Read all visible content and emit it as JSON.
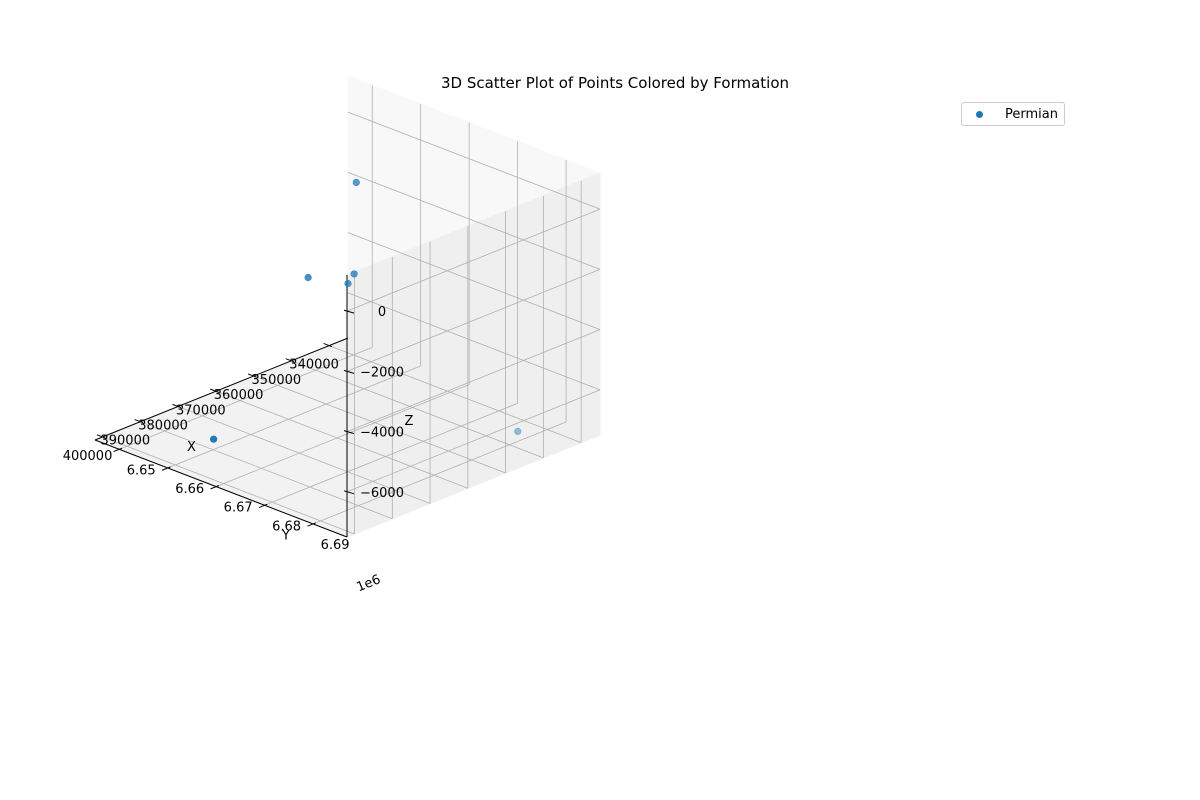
{
  "chart_data": {
    "type": "scatter3d",
    "title": "3D Scatter Plot of Points Colored by Formation",
    "xlabel": "X",
    "ylabel": "Y",
    "zlabel": "Z",
    "y_offset_label": "1e6",
    "xlim": [
      335000,
      402000
    ],
    "ylim": [
      6.645,
      6.697
    ],
    "zlim": [
      -7500,
      1200
    ],
    "x_ticks": [
      340000,
      350000,
      360000,
      370000,
      380000,
      390000,
      400000
    ],
    "x_tick_labels": [
      "340000",
      "350000",
      "360000",
      "370000",
      "380000",
      "390000",
      "400000"
    ],
    "y_ticks": [
      6.65,
      6.66,
      6.67,
      6.68,
      6.69
    ],
    "y_tick_labels": [
      "6.65",
      "6.66",
      "6.67",
      "6.68",
      "6.69"
    ],
    "z_ticks": [
      0,
      -2000,
      -4000,
      -6000
    ],
    "z_tick_labels": [
      "0",
      "−2000",
      "−4000",
      "−6000"
    ],
    "legend": {
      "location": "top-right"
    },
    "series": [
      {
        "name": "Permian",
        "color": "#1f77b4",
        "points": [
          {
            "x": 337300,
            "y": 6.6485,
            "z": -2000
          },
          {
            "x": 351000,
            "y": 6.6925,
            "z": -6850
          },
          {
            "x": 387400,
            "y": 6.6581,
            "z": -7400
          },
          {
            "x": 385600,
            "y": 6.6762,
            "z": -1000
          },
          {
            "x": 398700,
            "y": 6.6959,
            "z": 1000
          },
          {
            "x": 400200,
            "y": 6.6958,
            "z": 750
          }
        ]
      }
    ]
  }
}
